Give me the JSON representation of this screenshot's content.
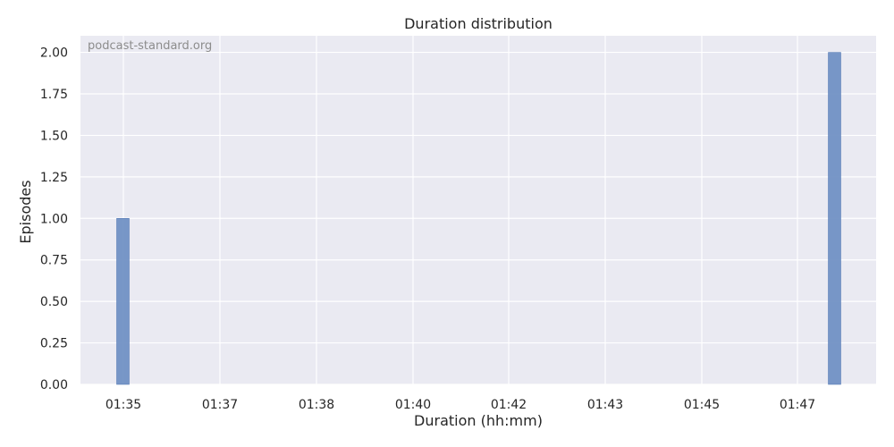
{
  "chart_data": {
    "type": "bar",
    "title": "Duration distribution",
    "xlabel": "Duration (hh:mm)",
    "ylabel": "Episodes",
    "watermark": "podcast-standard.org",
    "x_ticks": [
      "01:35",
      "01:37",
      "01:38",
      "01:40",
      "01:42",
      "01:43",
      "01:45",
      "01:47"
    ],
    "y_ticks": [
      "0.00",
      "0.25",
      "0.50",
      "0.75",
      "1.00",
      "1.25",
      "1.50",
      "1.75",
      "2.00"
    ],
    "ylim": [
      0,
      2.1
    ],
    "grid": true,
    "bars": [
      {
        "x": "01:35",
        "value": 1
      },
      {
        "x": "01:48",
        "value": 2
      }
    ],
    "colors": {
      "bar": "#7191c4",
      "bar_edge": "#4c72b0",
      "plot_background": "#eaeaf2",
      "grid": "#ffffff"
    }
  }
}
